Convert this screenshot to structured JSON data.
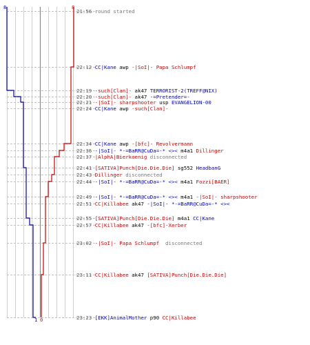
{
  "scores": {
    "blue_start": "8",
    "red_start": "8",
    "blue_end": "1",
    "red_end": "0"
  },
  "colors": {
    "blue_team": "#0000bb",
    "red_team": "#cc0000",
    "neutral": "#777777",
    "timestamp": "#555555",
    "dashed_rule": "#c0c0c0",
    "grid": "#d0d0d0",
    "center_line": "#888888"
  },
  "events": [
    {
      "time": "21:56",
      "parts": [
        {
          "text": "round started",
          "team": "gray"
        }
      ]
    },
    {
      "time": "22:12",
      "parts": [
        {
          "text": "CC|Kane",
          "team": "blue"
        },
        {
          "text": " awp ",
          "team": "black"
        },
        {
          "text": "-|SoI|- Papa Schlumpf",
          "team": "red"
        }
      ]
    },
    {
      "time": "22:19",
      "parts": [
        {
          "text": "-such[Clan]-",
          "team": "red"
        },
        {
          "text": " ak47 ",
          "team": "black"
        },
        {
          "text": "TERRORIST-2(TREFF@NIX)",
          "team": "blue"
        }
      ]
    },
    {
      "time": "22:20",
      "parts": [
        {
          "text": "-such[Clan]-",
          "team": "red"
        },
        {
          "text": " ak47 ",
          "team": "black"
        },
        {
          "text": "-=Pretender=-",
          "team": "blue"
        }
      ]
    },
    {
      "time": "22:21",
      "parts": [
        {
          "text": "-|SoI|- sharpshooter",
          "team": "red"
        },
        {
          "text": " usp ",
          "team": "black"
        },
        {
          "text": "EVANGELION-00",
          "team": "blue"
        }
      ]
    },
    {
      "time": "22:24",
      "parts": [
        {
          "text": "CC|Kane",
          "team": "blue"
        },
        {
          "text": " awp ",
          "team": "black"
        },
        {
          "text": "-such[Clan]-",
          "team": "red"
        }
      ]
    },
    {
      "time": "22:34",
      "parts": [
        {
          "text": "CC|Kane",
          "team": "blue"
        },
        {
          "text": " awp ",
          "team": "black"
        },
        {
          "text": "-[bfc]- Revolvermann",
          "team": "red"
        }
      ]
    },
    {
      "time": "22:36",
      "parts": [
        {
          "text": "-|SoI|- *-=BaRR@CuDa=-* <><",
          "team": "blue"
        },
        {
          "text": " m4a1 ",
          "team": "black"
        },
        {
          "text": "Dillinger",
          "team": "red"
        }
      ]
    },
    {
      "time": "22:37",
      "parts": [
        {
          "text": "|AlphA|Bierkoenig",
          "team": "red"
        },
        {
          "text": " disconnected",
          "team": "gray"
        }
      ]
    },
    {
      "time": "22:41",
      "parts": [
        {
          "text": "[SATIVA]Punch[Die.Die.Die]",
          "team": "red"
        },
        {
          "text": " sg552 ",
          "team": "black"
        },
        {
          "text": "HeadbanG",
          "team": "blue"
        }
      ]
    },
    {
      "time": "22:43",
      "parts": [
        {
          "text": "Dillinger",
          "team": "red"
        },
        {
          "text": " disconnected",
          "team": "gray"
        }
      ]
    },
    {
      "time": "22:44",
      "parts": [
        {
          "text": "-|SoI|- *-=BaRR@CuDa=-* <><",
          "team": "blue"
        },
        {
          "text": " m4a1 ",
          "team": "black"
        },
        {
          "text": "Fozzi[BAER]",
          "team": "red"
        }
      ]
    },
    {
      "time": "22:49",
      "parts": [
        {
          "text": "-|SoI|- *-=BaRR@CuDa=-* <><",
          "team": "blue"
        },
        {
          "text": " m4a1 ",
          "team": "black"
        },
        {
          "text": "-|SoI|- sharpshooter",
          "team": "red"
        }
      ]
    },
    {
      "time": "22:51",
      "parts": [
        {
          "text": "CC|Killabee",
          "team": "red"
        },
        {
          "text": " ak47 ",
          "team": "black"
        },
        {
          "text": "-|SoI|- *-=BaRR@CuDa=-* <><",
          "team": "blue"
        }
      ]
    },
    {
      "time": "22:55",
      "parts": [
        {
          "text": "[SATIVA]Punch[Die.Die.Die]",
          "team": "red"
        },
        {
          "text": " m4a1 ",
          "team": "black"
        },
        {
          "text": "CC|Kane",
          "team": "blue"
        }
      ]
    },
    {
      "time": "22:57",
      "parts": [
        {
          "text": "CC|Killabee",
          "team": "red"
        },
        {
          "text": " ak47 ",
          "team": "black"
        },
        {
          "text": "-[bfc]-Xerber",
          "team": "red"
        }
      ]
    },
    {
      "time": "23:02",
      "parts": [
        {
          "text": "-|SoI|- Papa Schlumpf",
          "team": "red"
        },
        {
          "text": "  disconnected",
          "team": "gray"
        }
      ]
    },
    {
      "time": "23:11",
      "parts": [
        {
          "text": "CC|Killabee",
          "team": "red"
        },
        {
          "text": " ak47 ",
          "team": "black"
        },
        {
          "text": "[SATIVA]Punch[Die.Die.Die]",
          "team": "red"
        }
      ]
    },
    {
      "time": "23:23",
      "parts": [
        {
          "text": "[EKK]AnimalMother",
          "team": "blue"
        },
        {
          "text": " p90 ",
          "team": "black"
        },
        {
          "text": "CC|Killabee",
          "team": "red"
        }
      ]
    }
  ]
}
